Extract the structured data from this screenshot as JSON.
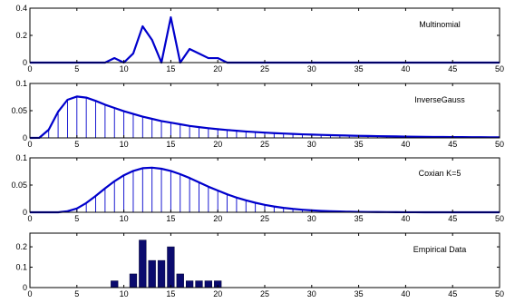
{
  "chart_data": [
    {
      "type": "line",
      "legend": "Multinomial",
      "stems": false,
      "xlim": [
        0,
        50
      ],
      "ylim": [
        0,
        0.4
      ],
      "xticks": [
        0,
        5,
        10,
        15,
        20,
        25,
        30,
        35,
        40,
        45,
        50
      ],
      "yticks": [
        0,
        0.2,
        0.4
      ],
      "x": [
        0,
        1,
        2,
        3,
        4,
        5,
        6,
        7,
        8,
        9,
        10,
        11,
        12,
        13,
        14,
        15,
        16,
        17,
        18,
        19,
        20,
        21,
        22,
        23,
        24,
        25,
        26,
        27,
        28,
        29,
        30,
        31,
        32,
        33,
        34,
        35,
        36,
        37,
        38,
        39,
        40,
        41,
        42,
        43,
        44,
        45,
        46,
        47,
        48,
        49,
        50
      ],
      "y": [
        0,
        0,
        0,
        0,
        0,
        0,
        0,
        0,
        0,
        0.033,
        0,
        0.067,
        0.267,
        0.167,
        0,
        0.333,
        0,
        0.1,
        0.067,
        0.033,
        0.033,
        0,
        0,
        0,
        0,
        0,
        0,
        0,
        0,
        0,
        0,
        0,
        0,
        0,
        0,
        0,
        0,
        0,
        0,
        0,
        0,
        0,
        0,
        0,
        0,
        0,
        0,
        0,
        0,
        0,
        0
      ]
    },
    {
      "type": "line",
      "legend": "InverseGauss",
      "stems": true,
      "xlim": [
        0,
        50
      ],
      "ylim": [
        0,
        0.1
      ],
      "xticks": [
        0,
        5,
        10,
        15,
        20,
        25,
        30,
        35,
        40,
        45,
        50
      ],
      "yticks": [
        0,
        0.05,
        0.1
      ],
      "x": [
        0,
        1,
        2,
        3,
        4,
        5,
        6,
        7,
        8,
        9,
        10,
        11,
        12,
        13,
        14,
        15,
        16,
        17,
        18,
        19,
        20,
        21,
        22,
        23,
        24,
        25,
        26,
        27,
        28,
        29,
        30,
        31,
        32,
        33,
        34,
        35,
        36,
        37,
        38,
        39,
        40,
        41,
        42,
        43,
        44,
        45,
        46,
        47,
        48,
        49,
        50
      ],
      "y": [
        0,
        0.0002,
        0.015,
        0.048,
        0.07,
        0.076,
        0.074,
        0.068,
        0.061,
        0.055,
        0.049,
        0.044,
        0.039,
        0.035,
        0.031,
        0.028,
        0.025,
        0.022,
        0.0198,
        0.0178,
        0.016,
        0.0145,
        0.0131,
        0.0118,
        0.0107,
        0.0097,
        0.0088,
        0.008,
        0.0073,
        0.0066,
        0.006,
        0.0055,
        0.005,
        0.0046,
        0.0042,
        0.0038,
        0.0035,
        0.0032,
        0.0029,
        0.0027,
        0.0024,
        0.0022,
        0.002,
        0.0018,
        0.0017,
        0.0015,
        0.0014,
        0.0013,
        0.0012,
        0.0011,
        0.001
      ]
    },
    {
      "type": "line",
      "legend": "Coxian K=5",
      "stems": true,
      "xlim": [
        0,
        50
      ],
      "ylim": [
        0,
        0.1
      ],
      "xticks": [
        0,
        5,
        10,
        15,
        20,
        25,
        30,
        35,
        40,
        45,
        50
      ],
      "yticks": [
        0,
        0.05,
        0.1
      ],
      "x": [
        0,
        1,
        2,
        3,
        4,
        5,
        6,
        7,
        8,
        9,
        10,
        11,
        12,
        13,
        14,
        15,
        16,
        17,
        18,
        19,
        20,
        21,
        22,
        23,
        24,
        25,
        26,
        27,
        28,
        29,
        30,
        31,
        32,
        33,
        34,
        35,
        36,
        37,
        38,
        39,
        40,
        41,
        42,
        43,
        44,
        45,
        46,
        47,
        48,
        49,
        50
      ],
      "y": [
        0,
        0,
        0,
        0,
        0.002,
        0.007,
        0.017,
        0.03,
        0.044,
        0.057,
        0.068,
        0.076,
        0.081,
        0.082,
        0.08,
        0.076,
        0.07,
        0.063,
        0.055,
        0.047,
        0.04,
        0.033,
        0.027,
        0.022,
        0.0175,
        0.0137,
        0.0106,
        0.0081,
        0.0062,
        0.0047,
        0.0035,
        0.0026,
        0.0019,
        0.0014,
        0.001,
        0.0007,
        0.0005,
        0.0004,
        0.0003,
        0.0002,
        0.0001,
        0.0001,
        0,
        0,
        0,
        0,
        0,
        0,
        0,
        0,
        0
      ]
    },
    {
      "type": "bar",
      "legend": "Empirical Data",
      "xlim": [
        0,
        50
      ],
      "ylim": [
        0,
        0.267
      ],
      "xticks": [
        0,
        5,
        10,
        15,
        20,
        25,
        30,
        35,
        40,
        45,
        50
      ],
      "yticks": [
        0,
        0.1,
        0.2
      ],
      "x": [
        9,
        11,
        12,
        13,
        14,
        15,
        16,
        17,
        18,
        19,
        20
      ],
      "values": [
        0.033,
        0.067,
        0.233,
        0.133,
        0.133,
        0.2,
        0.067,
        0.033,
        0.033,
        0.033,
        0.033
      ]
    }
  ]
}
